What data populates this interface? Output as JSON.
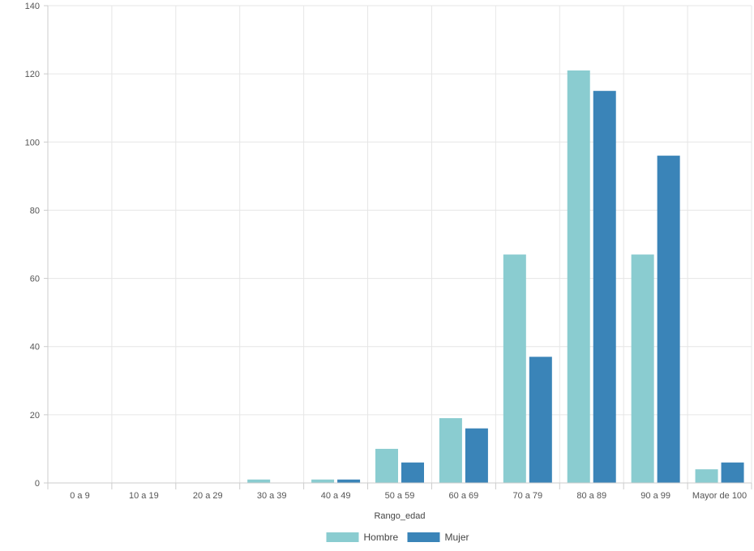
{
  "chart_data": {
    "type": "bar",
    "categories": [
      "0 a 9",
      "10 a 19",
      "20 a 29",
      "30 a 39",
      "40 a 49",
      "50 a 59",
      "60 a 69",
      "70 a 79",
      "80 a 89",
      "90 a 99",
      "Mayor de 100"
    ],
    "series": [
      {
        "name": "Hombre",
        "color": "#8accd0",
        "values": [
          0,
          0,
          0,
          1,
          1,
          10,
          19,
          67,
          121,
          67,
          4
        ]
      },
      {
        "name": "Mujer",
        "color": "#3a84b8",
        "values": [
          0,
          0,
          0,
          0,
          1,
          6,
          16,
          37,
          115,
          96,
          6
        ]
      }
    ],
    "title": "",
    "xlabel": "Rango_edad",
    "ylabel": "",
    "ylim": [
      0,
      140
    ],
    "yticks": [
      0,
      20,
      40,
      60,
      80,
      100,
      120,
      140
    ],
    "grid": true,
    "legend": "bottom-center"
  }
}
